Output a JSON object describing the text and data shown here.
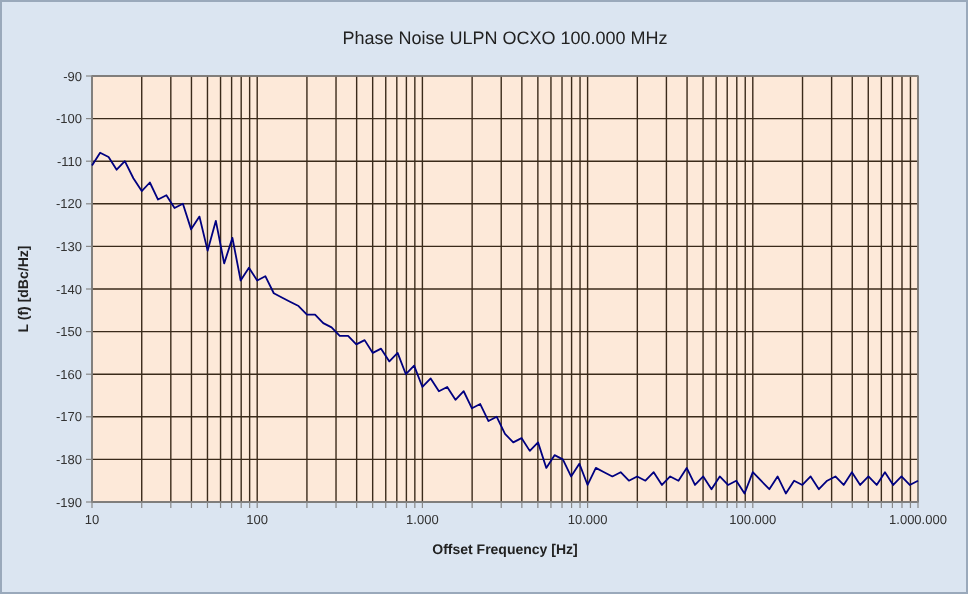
{
  "chart_data": {
    "type": "line",
    "title": "Phase Noise ULPN OCXO 100.000 MHz",
    "xlabel": "Offset Frequency [Hz]",
    "ylabel": "L (f) [dBc/Hz]",
    "log": "x",
    "grid": true,
    "marker": "none",
    "line_style": "solid",
    "xlim": [
      10,
      1000000
    ],
    "ylim": [
      -190,
      -90
    ],
    "xticks": [
      {
        "value": 10,
        "label": "10"
      },
      {
        "value": 20,
        "label": null
      },
      {
        "value": 30,
        "label": null
      },
      {
        "value": 40,
        "label": null
      },
      {
        "value": 50,
        "label": null
      },
      {
        "value": 60,
        "label": null
      },
      {
        "value": 70,
        "label": null
      },
      {
        "value": 80,
        "label": null
      },
      {
        "value": 90,
        "label": null
      },
      {
        "value": 100,
        "label": "100"
      },
      {
        "value": 200,
        "label": null
      },
      {
        "value": 300,
        "label": null
      },
      {
        "value": 400,
        "label": null
      },
      {
        "value": 500,
        "label": null
      },
      {
        "value": 600,
        "label": null
      },
      {
        "value": 700,
        "label": null
      },
      {
        "value": 800,
        "label": null
      },
      {
        "value": 900,
        "label": null
      },
      {
        "value": 1000,
        "label": "1.000"
      },
      {
        "value": 2000,
        "label": null
      },
      {
        "value": 3000,
        "label": null
      },
      {
        "value": 4000,
        "label": null
      },
      {
        "value": 5000,
        "label": null
      },
      {
        "value": 6000,
        "label": null
      },
      {
        "value": 7000,
        "label": null
      },
      {
        "value": 8000,
        "label": null
      },
      {
        "value": 9000,
        "label": null
      },
      {
        "value": 10000,
        "label": "10.000"
      },
      {
        "value": 20000,
        "label": null
      },
      {
        "value": 30000,
        "label": null
      },
      {
        "value": 40000,
        "label": null
      },
      {
        "value": 50000,
        "label": null
      },
      {
        "value": 60000,
        "label": null
      },
      {
        "value": 70000,
        "label": null
      },
      {
        "value": 80000,
        "label": null
      },
      {
        "value": 90000,
        "label": null
      },
      {
        "value": 100000,
        "label": "100.000"
      },
      {
        "value": 200000,
        "label": null
      },
      {
        "value": 300000,
        "label": null
      },
      {
        "value": 400000,
        "label": null
      },
      {
        "value": 500000,
        "label": null
      },
      {
        "value": 600000,
        "label": null
      },
      {
        "value": 700000,
        "label": null
      },
      {
        "value": 800000,
        "label": null
      },
      {
        "value": 900000,
        "label": null
      },
      {
        "value": 1000000,
        "label": "1.000.000"
      }
    ],
    "yticks": [
      -190,
      -180,
      -170,
      -160,
      -150,
      -140,
      -130,
      -120,
      -110,
      -100,
      -90
    ],
    "x": [
      10,
      11.2,
      12.6,
      14.1,
      15.8,
      17.8,
      20,
      22.4,
      25.1,
      28.2,
      31.6,
      35.5,
      39.8,
      44.7,
      50.1,
      56.2,
      63.1,
      70.8,
      79.4,
      89.1,
      100,
      112,
      126,
      141,
      158,
      178,
      200,
      224,
      251,
      282,
      316,
      355,
      398,
      447,
      501,
      562,
      631,
      708,
      794,
      891,
      1000,
      1122,
      1259,
      1413,
      1585,
      1778,
      1995,
      2239,
      2512,
      2818,
      3162,
      3548,
      3981,
      4467,
      5012,
      5623,
      6310,
      7079,
      7943,
      8913,
      10000,
      11220,
      12589,
      14125,
      15849,
      17783,
      19953,
      22387,
      25119,
      28184,
      31623,
      35481,
      39811,
      44668,
      50119,
      56234,
      63096,
      70795,
      79433,
      89125,
      100000,
      112202,
      125893,
      141254,
      158489,
      177828,
      199526,
      223872,
      251189,
      281838,
      316228,
      354813,
      398107,
      446684,
      501187,
      562341,
      630957,
      707946,
      794328,
      891251,
      1000000
    ],
    "series": [
      {
        "color": "#000080",
        "values": [
          -111,
          -108,
          -109,
          -112,
          -110,
          -114,
          -117,
          -115,
          -119,
          -118,
          -121,
          -120,
          -126,
          -123,
          -131,
          -124,
          -134,
          -128,
          -138,
          -135,
          -138,
          -137,
          -141,
          -142,
          -143,
          -144,
          -146,
          -146,
          -148,
          -149,
          -151,
          -151,
          -153,
          -152,
          -155,
          -154,
          -157,
          -155,
          -160,
          -158,
          -163,
          -161,
          -164,
          -163,
          -166,
          -164,
          -168,
          -167,
          -171,
          -170,
          -174,
          -176,
          -175,
          -178,
          -176,
          -182,
          -179,
          -180,
          -184,
          -181,
          -186,
          -182,
          -183,
          -184,
          -183,
          -185,
          -184,
          -185,
          -183,
          -186,
          -184,
          -185,
          -182,
          -186,
          -184,
          -187,
          -184,
          -186,
          -185,
          -188,
          -183,
          -185,
          -187,
          -184,
          -188,
          -185,
          -186,
          -184,
          -187,
          -185,
          -184,
          -186,
          -183,
          -186,
          -184,
          -186,
          -183,
          -186,
          -184,
          -186,
          -185
        ]
      }
    ]
  }
}
